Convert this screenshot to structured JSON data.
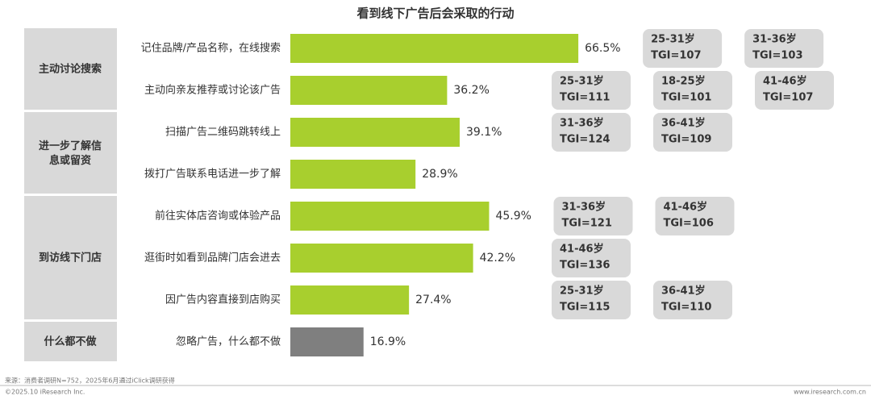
{
  "chart_data": {
    "type": "bar",
    "title": "看到线下广告后会采取的行动",
    "groups": [
      {
        "label": "主动讨论搜索",
        "color": "#a8cf2e",
        "categories": [
          "记住品牌/产品名称，在线搜索",
          "主动向亲友推荐或讨论该广告"
        ],
        "values": [
          66.5,
          36.2
        ],
        "value_labels": [
          "66.5%",
          "36.2%"
        ],
        "tgi": [
          [
            {
              "age": "25-31岁",
              "label": "TGI=107"
            },
            {
              "age": "31-36岁",
              "label": "TGI=103"
            }
          ],
          [
            {
              "age": "25-31岁",
              "label": "TGI=111"
            },
            {
              "age": "18-25岁",
              "label": "TGI=101"
            },
            {
              "age": "41-46岁",
              "label": "TGI=107"
            }
          ]
        ]
      },
      {
        "label": "进一步了解信息或留资",
        "color": "#a8cf2e",
        "categories": [
          "扫描广告二维码跳转线上",
          "拨打广告联系电话进一步了解"
        ],
        "values": [
          39.1,
          28.9
        ],
        "value_labels": [
          "39.1%",
          "28.9%"
        ],
        "tgi": [
          [
            {
              "age": "31-36岁",
              "label": "TGI=124"
            },
            {
              "age": "36-41岁",
              "label": "TGI=109"
            }
          ],
          []
        ]
      },
      {
        "label": "到访线下门店",
        "color": "#a8cf2e",
        "categories": [
          "前往实体店咨询或体验产品",
          "逛街时如看到品牌门店会进去",
          "因广告内容直接到店购买"
        ],
        "values": [
          45.9,
          42.2,
          27.4
        ],
        "value_labels": [
          "45.9%",
          "42.2%",
          "27.4%"
        ],
        "tgi": [
          [
            {
              "age": "31-36岁",
              "label": "TGI=121"
            },
            {
              "age": "41-46岁",
              "label": "TGI=106"
            }
          ],
          [
            {
              "age": "41-46岁",
              "label": "TGI=136"
            }
          ],
          [
            {
              "age": "25-31岁",
              "label": "TGI=115"
            },
            {
              "age": "36-41岁",
              "label": "TGI=110"
            }
          ]
        ]
      },
      {
        "label": "什么都不做",
        "color": "#7f7f7f",
        "categories": [
          "忽略广告，什么都不做"
        ],
        "values": [
          16.9
        ],
        "value_labels": [
          "16.9%"
        ],
        "tgi": [
          []
        ]
      }
    ],
    "source": "来源：消费者调研N=752，2025年6月通过iClick调研获得",
    "copyright": "©2025.10 iResearch Inc.",
    "website": "www.iresearch.com.cn"
  }
}
